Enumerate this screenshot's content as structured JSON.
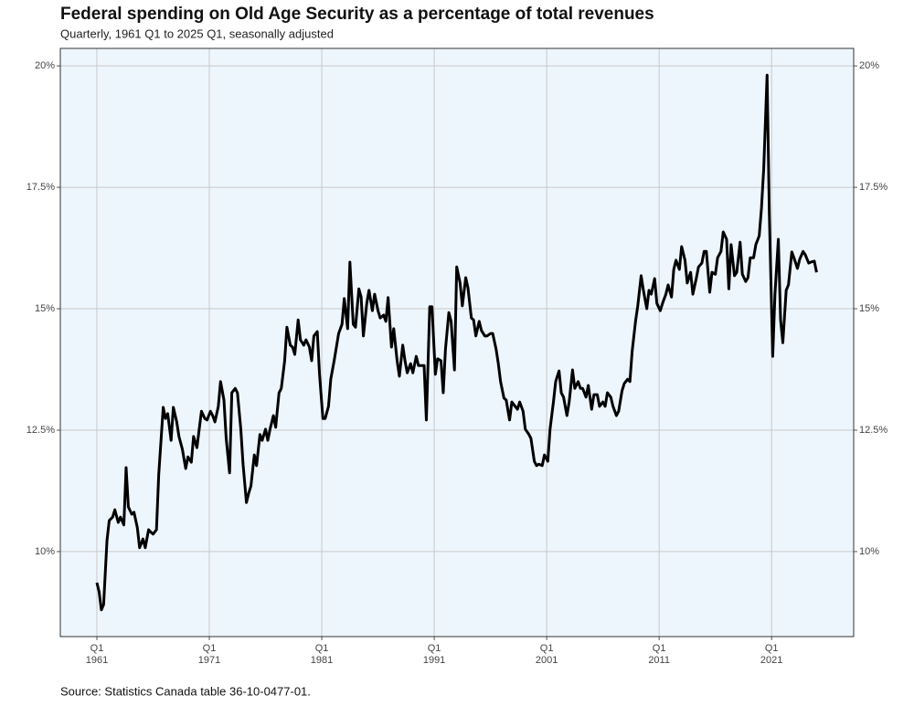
{
  "chart_data": {
    "type": "line",
    "title": "Federal spending on Old Age Security as a percentage of total revenues",
    "subtitle": "Quarterly, 1961 Q1 to 2025 Q1, seasonally adjusted",
    "source": "Source: Statistics Canada table 36-10-0477-01.",
    "color": "#000000",
    "grid": true,
    "xlim": [
      1957.75,
      2028.3
    ],
    "ylim": [
      8.25,
      20.36
    ],
    "xticks": [
      {
        "value": 1961,
        "label": "Q1\n1961"
      },
      {
        "value": 1971,
        "label": "Q1\n1971"
      },
      {
        "value": 1981,
        "label": "Q1\n1981"
      },
      {
        "value": 1991,
        "label": "Q1\n1991"
      },
      {
        "value": 2001,
        "label": "Q1\n2001"
      },
      {
        "value": 2011,
        "label": "Q1\n2011"
      },
      {
        "value": 2021,
        "label": "Q1\n2021"
      }
    ],
    "yticks": [
      {
        "value": 10,
        "label": "10%"
      },
      {
        "value": 12.5,
        "label": "12.5%"
      },
      {
        "value": 15,
        "label": "15%"
      },
      {
        "value": 17.5,
        "label": "17.5%"
      },
      {
        "value": 20,
        "label": "20%"
      }
    ],
    "x": [
      1961.0,
      1961.2,
      1961.4,
      1961.6,
      1961.9,
      1962.1,
      1962.4,
      1962.6,
      1962.9,
      1963.1,
      1963.4,
      1963.6,
      1963.8,
      1964.1,
      1964.3,
      1964.6,
      1964.8,
      1965.1,
      1965.3,
      1965.6,
      1965.8,
      1966.0,
      1966.3,
      1966.5,
      1966.9,
      1967.1,
      1967.3,
      1967.6,
      1967.8,
      1968.1,
      1968.3,
      1968.6,
      1968.9,
      1969.1,
      1969.4,
      1969.6,
      1969.9,
      1970.1,
      1970.3,
      1970.6,
      1970.8,
      1971.1,
      1971.3,
      1971.5,
      1971.8,
      1972.0,
      1972.3,
      1972.5,
      1972.8,
      1973.0,
      1973.3,
      1973.5,
      1973.8,
      1974.0,
      1974.3,
      1974.5,
      1974.7,
      1975.0,
      1975.2,
      1975.5,
      1975.7,
      1976.0,
      1976.2,
      1976.4,
      1976.7,
      1976.9,
      1977.2,
      1977.4,
      1977.7,
      1977.9,
      1978.2,
      1978.4,
      1978.6,
      1978.9,
      1979.1,
      1979.4,
      1979.6,
      1979.9,
      1980.1,
      1980.3,
      1980.6,
      1980.8,
      1981.1,
      1981.3,
      1981.6,
      1981.8,
      1982.1,
      1982.3,
      1982.5,
      1982.8,
      1983.0,
      1983.3,
      1983.5,
      1983.8,
      1984.0,
      1984.3,
      1984.5,
      1984.7,
      1985.0,
      1985.2,
      1985.5,
      1985.7,
      1986.0,
      1986.2,
      1986.5,
      1986.7,
      1986.9,
      1987.2,
      1987.4,
      1987.7,
      1987.9,
      1988.2,
      1988.4,
      1988.6,
      1988.9,
      1989.1,
      1989.4,
      1989.6,
      1989.9,
      1990.1,
      1990.3,
      1990.6,
      1990.8,
      1991.1,
      1991.3,
      1991.6,
      1991.8,
      1992.0,
      1992.3,
      1992.5,
      1992.8,
      1993.0,
      1993.3,
      1993.5,
      1993.8,
      1994.0,
      1994.3,
      1994.5,
      1994.7,
      1995.0,
      1995.2,
      1995.5,
      1995.7,
      1996.0,
      1996.2,
      1996.5,
      1996.7,
      1996.9,
      1997.2,
      1997.4,
      1997.7,
      1997.9,
      1998.2,
      1998.4,
      1998.6,
      1998.9,
      1999.1,
      1999.4,
      1999.6,
      1999.9,
      2000.1,
      2000.3,
      2000.6,
      2000.8,
      2001.1,
      2001.3,
      2001.6,
      2001.8,
      2002.1,
      2002.3,
      2002.5,
      2002.8,
      2003.0,
      2003.3,
      2003.5,
      2003.8,
      2004.0,
      2004.2,
      2004.5,
      2004.7,
      2005.0,
      2005.2,
      2005.5,
      2005.7,
      2006.0,
      2006.2,
      2006.4,
      2006.7,
      2006.9,
      2007.2,
      2007.4,
      2007.7,
      2007.9,
      2008.2,
      2008.4,
      2008.6,
      2008.9,
      2009.1,
      2009.4,
      2009.6,
      2009.9,
      2010.1,
      2010.3,
      2010.6,
      2010.8,
      2011.1,
      2011.3,
      2011.6,
      2011.8,
      2012.1,
      2012.3,
      2012.5,
      2012.8,
      2013.0,
      2013.3,
      2013.5,
      2013.8,
      2014.0,
      2014.3,
      2014.5,
      2014.8,
      2015.0,
      2015.2,
      2015.5,
      2015.7,
      2016.0,
      2016.2,
      2016.5,
      2016.7,
      2017.0,
      2017.2,
      2017.4,
      2017.7,
      2017.9,
      2018.2,
      2018.4,
      2018.7,
      2018.9,
      2019.1,
      2019.4,
      2019.6,
      2019.9,
      2020.1,
      2020.3,
      2020.6,
      2020.8,
      2021.1,
      2021.3,
      2021.6,
      2021.8,
      2022.0,
      2022.3,
      2022.5,
      2022.8,
      2023.0,
      2023.3,
      2023.5,
      2023.8,
      2024.0,
      2024.3,
      2024.5,
      2024.8,
      2025.0
    ],
    "values": [
      9.36,
      9.17,
      8.8,
      8.91,
      10.23,
      10.64,
      10.71,
      10.86,
      10.6,
      10.71,
      10.55,
      11.73,
      10.92,
      10.77,
      10.81,
      10.49,
      10.08,
      10.26,
      10.08,
      10.45,
      10.4,
      10.36,
      10.45,
      11.58,
      12.97,
      12.74,
      12.84,
      12.29,
      12.97,
      12.67,
      12.37,
      12.11,
      11.71,
      11.95,
      11.84,
      12.37,
      12.14,
      12.52,
      12.89,
      12.74,
      12.71,
      12.89,
      12.8,
      12.67,
      12.99,
      13.5,
      13.12,
      12.33,
      11.62,
      13.27,
      13.36,
      13.27,
      12.52,
      11.8,
      11.01,
      11.2,
      11.35,
      11.99,
      11.77,
      12.41,
      12.29,
      12.52,
      12.29,
      12.52,
      12.8,
      12.56,
      13.27,
      13.36,
      13.93,
      14.62,
      14.25,
      14.21,
      14.06,
      14.77,
      14.36,
      14.25,
      14.36,
      14.21,
      13.93,
      14.44,
      14.53,
      13.65,
      12.74,
      12.74,
      12.99,
      13.55,
      13.93,
      14.21,
      14.49,
      14.68,
      15.21,
      14.59,
      15.96,
      14.68,
      14.62,
      15.41,
      15.24,
      14.44,
      15.11,
      15.38,
      14.96,
      15.3,
      14.96,
      14.81,
      14.87,
      14.74,
      15.23,
      14.21,
      14.59,
      13.93,
      13.61,
      14.25,
      13.93,
      13.68,
      13.87,
      13.68,
      14.02,
      13.83,
      13.83,
      13.83,
      12.71,
      15.04,
      15.04,
      13.65,
      13.97,
      13.93,
      13.27,
      14.17,
      14.92,
      14.74,
      13.74,
      15.86,
      15.53,
      15.06,
      15.64,
      15.43,
      14.81,
      14.77,
      14.44,
      14.74,
      14.55,
      14.44,
      14.44,
      14.49,
      14.49,
      14.17,
      13.87,
      13.5,
      13.16,
      13.12,
      12.71,
      13.08,
      12.99,
      12.93,
      13.08,
      12.89,
      12.52,
      12.42,
      12.33,
      11.86,
      11.77,
      11.8,
      11.77,
      11.99,
      11.86,
      12.52,
      13.08,
      13.5,
      13.72,
      13.27,
      13.18,
      12.8,
      13.08,
      13.74,
      13.36,
      13.5,
      13.36,
      13.36,
      13.18,
      13.42,
      12.93,
      13.23,
      13.23,
      12.99,
      13.08,
      12.99,
      13.27,
      13.18,
      12.99,
      12.8,
      12.89,
      13.31,
      13.46,
      13.55,
      13.5,
      14.12,
      14.74,
      15.06,
      15.68,
      15.38,
      15.0,
      15.38,
      15.3,
      15.62,
      15.11,
      14.96,
      15.11,
      15.3,
      15.49,
      15.24,
      15.81,
      16.0,
      15.81,
      16.28,
      16.0,
      15.53,
      15.75,
      15.3,
      15.62,
      15.86,
      15.94,
      16.18,
      16.18,
      15.34,
      15.75,
      15.71,
      16.05,
      16.18,
      16.58,
      16.43,
      15.41,
      16.32,
      15.68,
      15.75,
      16.37,
      15.71,
      15.56,
      15.64,
      16.05,
      16.05,
      16.32,
      16.5,
      17.07,
      17.88,
      19.81,
      16.94,
      14.02,
      15.3,
      16.43,
      14.77,
      14.3,
      15.38,
      15.49,
      16.17,
      16.04,
      15.83,
      16.02,
      16.18,
      16.11,
      15.94,
      15.96,
      15.98,
      15.75
    ]
  }
}
